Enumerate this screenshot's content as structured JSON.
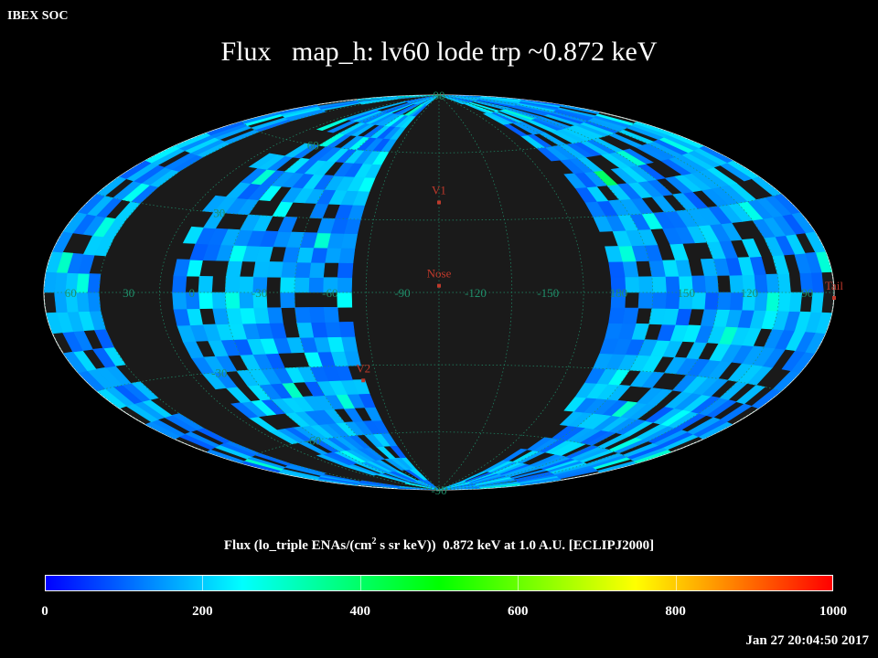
{
  "org_label": "IBEX SOC",
  "timestamp": "Jan 27 20:04:50 2017",
  "colors": {
    "background": "#000000",
    "map_fill": "#1a1a1a",
    "graticule": "#1f8f6a",
    "outline": "#ffffff",
    "marker": "#c0392b"
  },
  "chart_data": {
    "type": "heatmap",
    "title": "Flux   map_h: lv60 lode trp ~0.872 keV",
    "projection": "Hammer-Aitoff, ecliptic J2000, centered on Nose",
    "colorbar": {
      "label": "Flux (lo_triple ENAs/(cm² s sr keV))  0.872 keV at 1.0 A.U. [ECLIPJ2000]",
      "label_prefix": "Flux (lo_triple ENAs/(cm",
      "label_superscript": "2",
      "label_suffix": " s sr keV))  0.872 keV at 1.0 A.U. [ECLIPJ2000]",
      "min": 0,
      "max": 1000,
      "ticks": [
        "0",
        "200",
        "400",
        "600",
        "800",
        "1000"
      ],
      "stops": [
        "#0000ff",
        "#00ffff",
        "#00ff00",
        "#ffff00",
        "#ff0000"
      ]
    },
    "longitude_labels": [
      "60",
      "30",
      "0",
      "-30",
      "-60",
      "-90",
      "-120",
      "-150",
      "180",
      "150",
      "120",
      "90"
    ],
    "latitude_labels": [
      "90",
      "60",
      "30",
      "-30",
      "-60",
      "-90"
    ],
    "markers": [
      {
        "label": "V1"
      },
      {
        "label": "Nose"
      },
      {
        "label": "V2"
      },
      {
        "label": "Tail"
      }
    ],
    "coverage": "Two observed swaths, one on each side of the center; center and outer regions unobserved (no data)",
    "dominant_flux_range": [
      100,
      300
    ],
    "max_observed_flux_approx": 420
  }
}
